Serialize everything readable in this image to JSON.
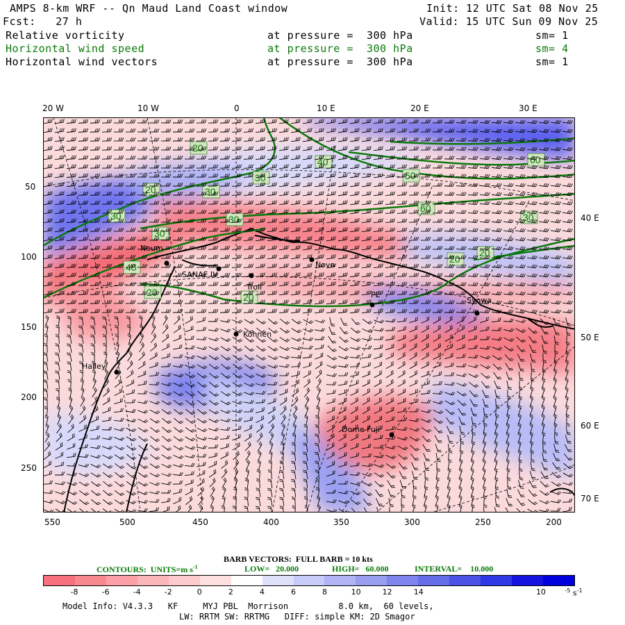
{
  "header": {
    "title": "AMPS 8-km WRF -- Qn Maud Land Coast window",
    "fcst": "Fcst:   27 h",
    "init": "Init: 12 UTC Sat 08 Nov 25",
    "valid": "Valid: 15 UTC Sun 09 Nov 25",
    "fields": [
      {
        "name": "Relative vorticity",
        "level": "at pressure =  300 hPa",
        "sm": "sm= 1",
        "color": "#000000"
      },
      {
        "name": "Horizontal wind speed",
        "level": "at pressure =  300 hPa",
        "sm": "sm= 4",
        "color": "#0a7a0a"
      },
      {
        "name": "Horizontal wind vectors",
        "level": "at pressure =  300 hPa",
        "sm": "sm= 1",
        "color": "#000000"
      }
    ]
  },
  "map": {
    "lon_top": [
      "20 W",
      "10 W",
      "0",
      "10 E",
      "20 E",
      "30 E"
    ],
    "lon_right": [
      "40 E",
      "50 E",
      "60 E",
      "70 E"
    ],
    "y_axis": [
      "50",
      "100",
      "150",
      "200",
      "250"
    ],
    "x_axis": [
      "550",
      "500",
      "450",
      "400",
      "350",
      "300",
      "250",
      "200"
    ],
    "stations": [
      "Neum",
      "SANAE IV",
      "Troll",
      "Novo",
      "PE",
      "Syowa",
      "Kohnen",
      "Halley",
      "Dome Fuji"
    ],
    "contour_labels": [
      "20",
      "30",
      "40",
      "50",
      "60"
    ]
  },
  "footer": {
    "barb": "BARB VECTORS:  FULL BARB = 10 kts",
    "contours": "CONTOURS:  UNITS=m s",
    "contours_sup": "-1",
    "low": "LOW=   20.000",
    "high": "HIGH=   60.000",
    "interval": "INTERVAL=    10.000",
    "colorbar_labels": [
      "-8",
      "-6",
      "-4",
      "-2",
      "0",
      "2",
      "4",
      "6",
      "8",
      "10",
      "12",
      "14",
      "10"
    ],
    "colorbar_unit_exp": "-5",
    "colorbar_unit": "s",
    "colorbar_unit_sup": "-1",
    "colors": [
      "#f7707e",
      "#f8888f",
      "#faa0a6",
      "#fbb6ba",
      "#fdcbcd",
      "#fee0e1",
      "#ffffff",
      "#dfe1fb",
      "#c8cbf7",
      "#b0b4f4",
      "#989df0",
      "#7f85ec",
      "#666dea",
      "#4c52e6",
      "#3037e4",
      "#1414e0",
      "#0000dd"
    ],
    "model_line1": "Model Info: V4.3.3   KF     MYJ PBL  Morrison          8.0 km,  60 levels,",
    "model_line2": "LW: RRTM SW: RRTMG   DIFF: simple KM: 2D Smagor"
  }
}
